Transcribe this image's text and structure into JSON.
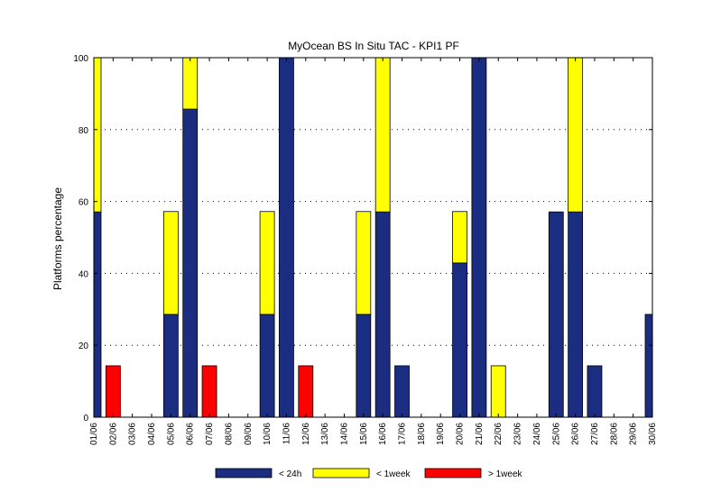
{
  "chart_data": {
    "type": "bar",
    "stacked": true,
    "title": "MyOcean  BS In Situ TAC - KPI1  PF",
    "xlabel": "",
    "ylabel": "Platforms percentage",
    "ylim": [
      0,
      100
    ],
    "yticks": [
      0,
      20,
      40,
      60,
      80,
      100
    ],
    "grid": "horizontal dotted",
    "legend_position": "bottom",
    "categories": [
      "01/06",
      "02/06",
      "03/06",
      "04/06",
      "05/06",
      "06/06",
      "07/06",
      "08/06",
      "09/06",
      "10/06",
      "11/06",
      "12/06",
      "13/06",
      "14/06",
      "15/06",
      "16/06",
      "17/06",
      "18/06",
      "19/06",
      "20/06",
      "21/06",
      "22/06",
      "23/06",
      "24/06",
      "25/06",
      "26/06",
      "27/06",
      "28/06",
      "29/06",
      "30/06"
    ],
    "series": [
      {
        "name": "< 24h",
        "color": "#1a2d80",
        "values": [
          57.1,
          0,
          0,
          0,
          28.6,
          85.7,
          0,
          0,
          0,
          28.6,
          100,
          0,
          0,
          0,
          28.6,
          57.1,
          14.3,
          0,
          0,
          42.9,
          100,
          0,
          0,
          0,
          57.1,
          57.1,
          14.3,
          0,
          0,
          28.6
        ]
      },
      {
        "name": "< 1week",
        "color": "#ffff00",
        "values": [
          42.9,
          0,
          0,
          0,
          28.6,
          14.3,
          0,
          0,
          0,
          28.6,
          0,
          0,
          0,
          0,
          28.6,
          42.9,
          0,
          0,
          0,
          14.3,
          0,
          14.3,
          0,
          0,
          0,
          42.9,
          0,
          0,
          0,
          0
        ]
      },
      {
        "name": "> 1week",
        "color": "#ff0000",
        "values": [
          0,
          14.3,
          0,
          0,
          0,
          0,
          14.3,
          0,
          0,
          0,
          0,
          14.3,
          0,
          0,
          0,
          0,
          0,
          0,
          0,
          0,
          0,
          0,
          0,
          0,
          0,
          0,
          0,
          0,
          0,
          0
        ]
      }
    ]
  }
}
